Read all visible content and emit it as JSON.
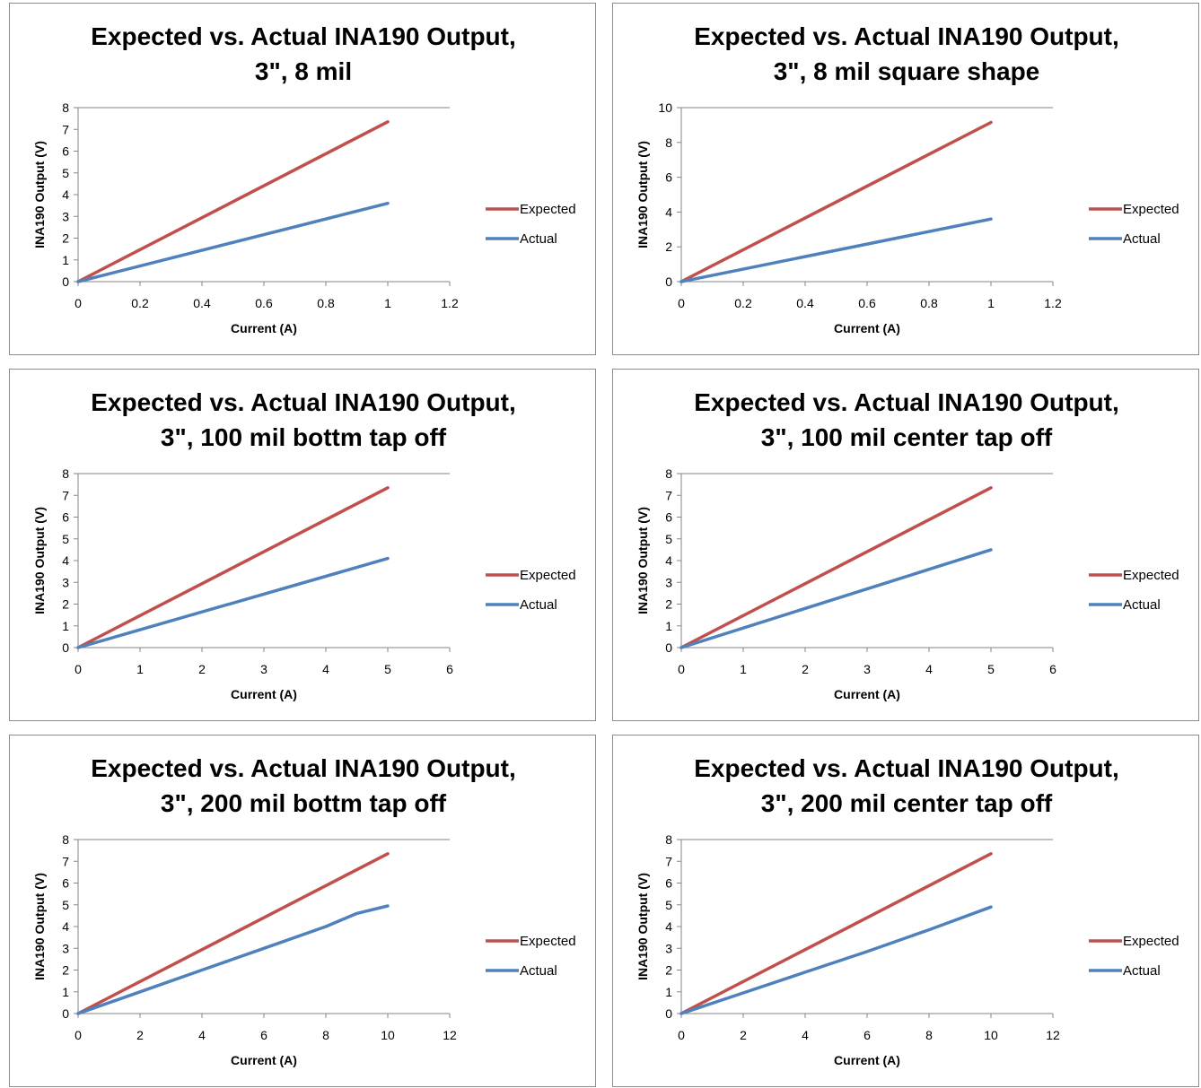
{
  "chart_data": [
    {
      "type": "line",
      "title_lines": [
        "Expected vs. Actual INA190 Output,",
        "3\", 8 mil"
      ],
      "xlabel": "Current (A)",
      "ylabel": "INA190 Output (V)",
      "xlim": [
        0,
        1.2
      ],
      "ylim": [
        0,
        8
      ],
      "xticks": [
        0,
        0.2,
        0.4,
        0.6,
        0.8,
        1,
        1.2
      ],
      "xtick_labels": [
        "0",
        "0.2",
        "0.4",
        "0.6",
        "0.8",
        "1",
        "1.2"
      ],
      "yticks": [
        0,
        1,
        2,
        3,
        4,
        5,
        6,
        7,
        8
      ],
      "ytick_labels": [
        "0",
        "1",
        "2",
        "3",
        "4",
        "5",
        "6",
        "7",
        "8"
      ],
      "grid": "horizontal top line only",
      "legend_position": "right",
      "series": [
        {
          "name": "Expected",
          "color": "#c0504d",
          "x": [
            0,
            1
          ],
          "y": [
            0,
            7.35
          ]
        },
        {
          "name": "Actual",
          "color": "#4f81bd",
          "x": [
            0,
            1
          ],
          "y": [
            0,
            3.6
          ]
        }
      ]
    },
    {
      "type": "line",
      "title_lines": [
        "Expected vs. Actual INA190 Output,",
        "3\", 8 mil square shape"
      ],
      "xlabel": "Current (A)",
      "ylabel": "INA190 Output (V)",
      "xlim": [
        0,
        1.2
      ],
      "ylim": [
        0,
        10
      ],
      "xticks": [
        0,
        0.2,
        0.4,
        0.6,
        0.8,
        1,
        1.2
      ],
      "xtick_labels": [
        "0",
        "0.2",
        "0.4",
        "0.6",
        "0.8",
        "1",
        "1.2"
      ],
      "yticks": [
        0,
        2,
        4,
        6,
        8,
        10
      ],
      "ytick_labels": [
        "0",
        "2",
        "4",
        "6",
        "8",
        "10"
      ],
      "grid": "horizontal top line only",
      "legend_position": "right",
      "series": [
        {
          "name": "Expected",
          "color": "#c0504d",
          "x": [
            0,
            1
          ],
          "y": [
            0,
            9.15
          ]
        },
        {
          "name": "Actual",
          "color": "#4f81bd",
          "x": [
            0,
            1
          ],
          "y": [
            0,
            3.6
          ]
        }
      ]
    },
    {
      "type": "line",
      "title_lines": [
        "Expected vs. Actual INA190 Output,",
        "3\", 100 mil bottm  tap  off"
      ],
      "xlabel": "Current (A)",
      "ylabel": "INA190 Output (V)",
      "xlim": [
        0,
        6
      ],
      "ylim": [
        0,
        8
      ],
      "xticks": [
        0,
        1,
        2,
        3,
        4,
        5,
        6
      ],
      "xtick_labels": [
        "0",
        "1",
        "2",
        "3",
        "4",
        "5",
        "6"
      ],
      "yticks": [
        0,
        1,
        2,
        3,
        4,
        5,
        6,
        7,
        8
      ],
      "ytick_labels": [
        "0",
        "1",
        "2",
        "3",
        "4",
        "5",
        "6",
        "7",
        "8"
      ],
      "grid": "horizontal top line only",
      "legend_position": "right",
      "series": [
        {
          "name": "Expected",
          "color": "#c0504d",
          "x": [
            0,
            5
          ],
          "y": [
            0,
            7.35
          ]
        },
        {
          "name": "Actual",
          "color": "#4f81bd",
          "x": [
            0,
            5
          ],
          "y": [
            0,
            4.1
          ]
        }
      ]
    },
    {
      "type": "line",
      "title_lines": [
        "Expected vs. Actual INA190 Output,",
        "3\", 100 mil center tap off"
      ],
      "xlabel": "Current (A)",
      "ylabel": "INA190 Output (V)",
      "xlim": [
        0,
        6
      ],
      "ylim": [
        0,
        8
      ],
      "xticks": [
        0,
        1,
        2,
        3,
        4,
        5,
        6
      ],
      "xtick_labels": [
        "0",
        "1",
        "2",
        "3",
        "4",
        "5",
        "6"
      ],
      "yticks": [
        0,
        1,
        2,
        3,
        4,
        5,
        6,
        7,
        8
      ],
      "ytick_labels": [
        "0",
        "1",
        "2",
        "3",
        "4",
        "5",
        "6",
        "7",
        "8"
      ],
      "grid": "horizontal top line only",
      "legend_position": "right",
      "series": [
        {
          "name": "Expected",
          "color": "#c0504d",
          "x": [
            0,
            5
          ],
          "y": [
            0,
            7.35
          ]
        },
        {
          "name": "Actual",
          "color": "#4f81bd",
          "x": [
            0,
            5
          ],
          "y": [
            0,
            4.5
          ]
        }
      ]
    },
    {
      "type": "line",
      "title_lines": [
        "Expected vs. Actual INA190 Output,",
        "3\", 200 mil bottm  tap  off"
      ],
      "xlabel": "Current (A)",
      "ylabel": "INA190 Output (V)",
      "xlim": [
        0,
        12
      ],
      "ylim": [
        0,
        8
      ],
      "xticks": [
        0,
        2,
        4,
        6,
        8,
        10,
        12
      ],
      "xtick_labels": [
        "0",
        "2",
        "4",
        "6",
        "8",
        "10",
        "12"
      ],
      "yticks": [
        0,
        1,
        2,
        3,
        4,
        5,
        6,
        7,
        8
      ],
      "ytick_labels": [
        "0",
        "1",
        "2",
        "3",
        "4",
        "5",
        "6",
        "7",
        "8"
      ],
      "grid": "horizontal top line only",
      "legend_position": "right",
      "series": [
        {
          "name": "Expected",
          "color": "#c0504d",
          "x": [
            0,
            10
          ],
          "y": [
            0,
            7.35
          ]
        },
        {
          "name": "Actual",
          "color": "#4f81bd",
          "x": [
            0,
            2,
            4,
            6,
            8,
            9,
            10
          ],
          "y": [
            0,
            1.0,
            2.0,
            3.0,
            4.0,
            4.6,
            4.95
          ]
        }
      ]
    },
    {
      "type": "line",
      "title_lines": [
        "Expected vs. Actual INA190 Output,",
        "3\", 200 mil center tap off"
      ],
      "xlabel": "Current (A)",
      "ylabel": "INA190 Output (V)",
      "xlim": [
        0,
        12
      ],
      "ylim": [
        0,
        8
      ],
      "xticks": [
        0,
        2,
        4,
        6,
        8,
        10,
        12
      ],
      "xtick_labels": [
        "0",
        "2",
        "4",
        "6",
        "8",
        "10",
        "12"
      ],
      "yticks": [
        0,
        1,
        2,
        3,
        4,
        5,
        6,
        7,
        8
      ],
      "ytick_labels": [
        "0",
        "1",
        "2",
        "3",
        "4",
        "5",
        "6",
        "7",
        "8"
      ],
      "grid": "horizontal top line only",
      "legend_position": "right",
      "series": [
        {
          "name": "Expected",
          "color": "#c0504d",
          "x": [
            0,
            10
          ],
          "y": [
            0,
            7.35
          ]
        },
        {
          "name": "Actual",
          "color": "#4f81bd",
          "x": [
            0,
            2,
            4,
            6,
            8,
            10
          ],
          "y": [
            0,
            0.95,
            1.9,
            2.85,
            3.85,
            4.9
          ]
        }
      ]
    }
  ]
}
